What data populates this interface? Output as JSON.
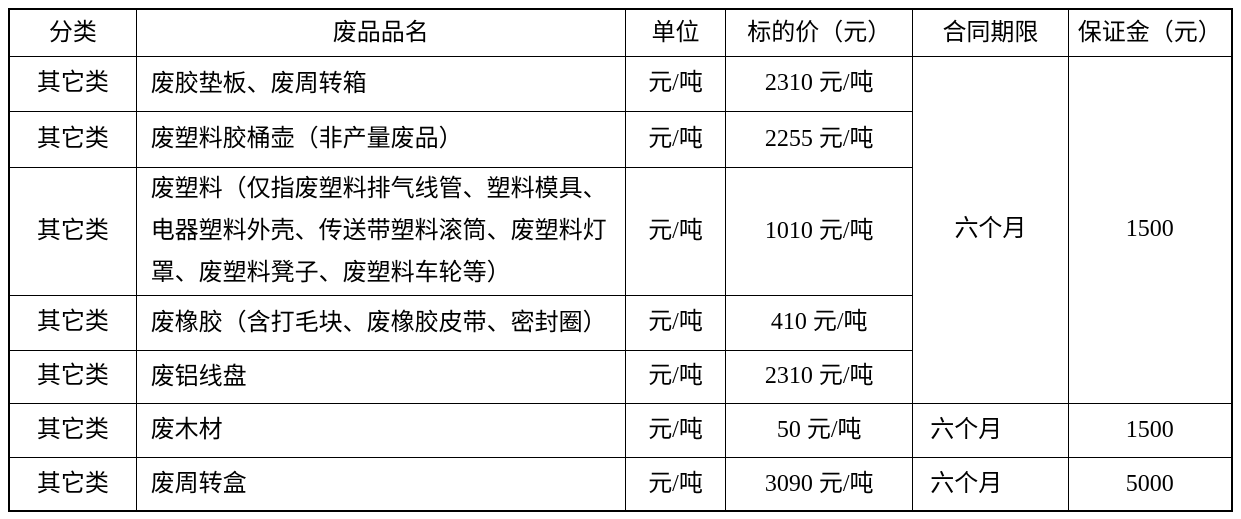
{
  "table": {
    "headers": {
      "category": "分类",
      "name": "废品品名",
      "unit": "单位",
      "price": "标的价（元）",
      "term": "合同期限",
      "deposit": "保证金（元）"
    },
    "rows": [
      {
        "category": "其它类",
        "name": "废胶垫板、废周转箱",
        "unit": "元/吨",
        "price": "2310 元/吨"
      },
      {
        "category": "其它类",
        "name": "废塑料胶桶壶（非产量废品）",
        "unit": "元/吨",
        "price": "2255 元/吨"
      },
      {
        "category": "其它类",
        "name": "废塑料（仅指废塑料排气线管、塑料模具、电器塑料外壳、传送带塑料滚筒、废塑料灯罩、废塑料凳子、废塑料车轮等）",
        "unit": "元/吨",
        "price": "1010 元/吨"
      },
      {
        "category": "其它类",
        "name": "废橡胶（含打毛块、废橡胶皮带、密封圈）",
        "unit": "元/吨",
        "price": "410 元/吨"
      },
      {
        "category": "其它类",
        "name": "废铝线盘",
        "unit": "元/吨",
        "price": "2310 元/吨"
      },
      {
        "category": "其它类",
        "name": "废木材",
        "unit": "元/吨",
        "price": "50 元/吨",
        "term": "六个月",
        "deposit": "1500"
      },
      {
        "category": "其它类",
        "name": "废周转盒",
        "unit": "元/吨",
        "price": "3090 元/吨",
        "term": "六个月",
        "deposit": "5000"
      }
    ],
    "merged_rows_1_to_5": {
      "term": "六个月",
      "deposit": "1500"
    },
    "colors": {
      "border": "#000000",
      "text": "#000000",
      "background": "#ffffff"
    }
  }
}
